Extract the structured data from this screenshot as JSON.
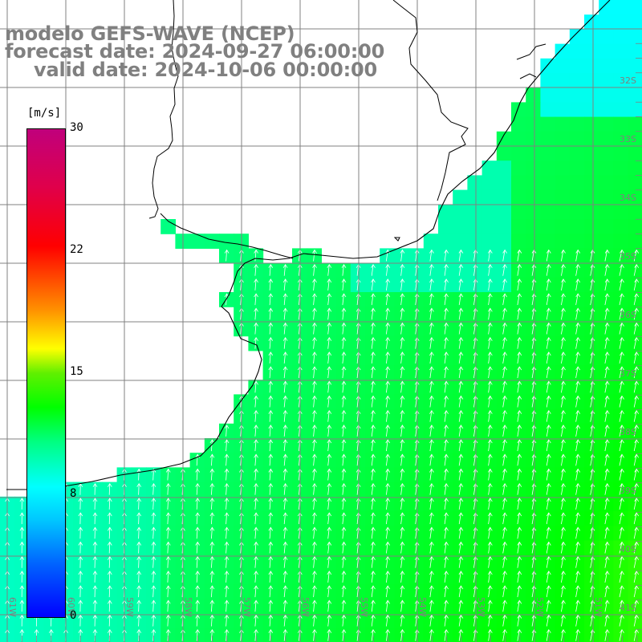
{
  "title": {
    "line1": "modelo GEFS-WAVE (NCEP)",
    "line2": "forecast date: 2024-09-27 06:00:00",
    "line3": "valid date: 2024-10-06 00:00:00"
  },
  "colorbar": {
    "unit": "[m/s]",
    "ticks": [
      {
        "label": "30",
        "value": 30
      },
      {
        "label": "22",
        "value": 22
      },
      {
        "label": "15",
        "value": 15
      },
      {
        "label": "8",
        "value": 8
      },
      {
        "label": "0",
        "value": 0
      }
    ],
    "range": [
      0,
      30
    ],
    "colors": [
      "#0000ff",
      "#00ffff",
      "#00ff00",
      "#ffff00",
      "#ff0000",
      "#c0007c"
    ]
  },
  "axes": {
    "lat_labels": [
      "32S",
      "33S",
      "34S",
      "35S",
      "36S",
      "37S",
      "38S",
      "39S",
      "40S",
      "41S"
    ],
    "lon_labels": [
      "61W",
      "60W",
      "59W",
      "58W",
      "57W",
      "56W",
      "55W",
      "54W",
      "53W",
      "52W",
      "51W"
    ]
  },
  "field": {
    "variable": "wind speed",
    "unit": "m/s",
    "min_value": 8,
    "max_value": 16,
    "arrow_direction": "north"
  },
  "colors": {
    "grid": "#808080",
    "coast": "#000000",
    "arrows": "#ffffff",
    "labels": "#808080"
  }
}
